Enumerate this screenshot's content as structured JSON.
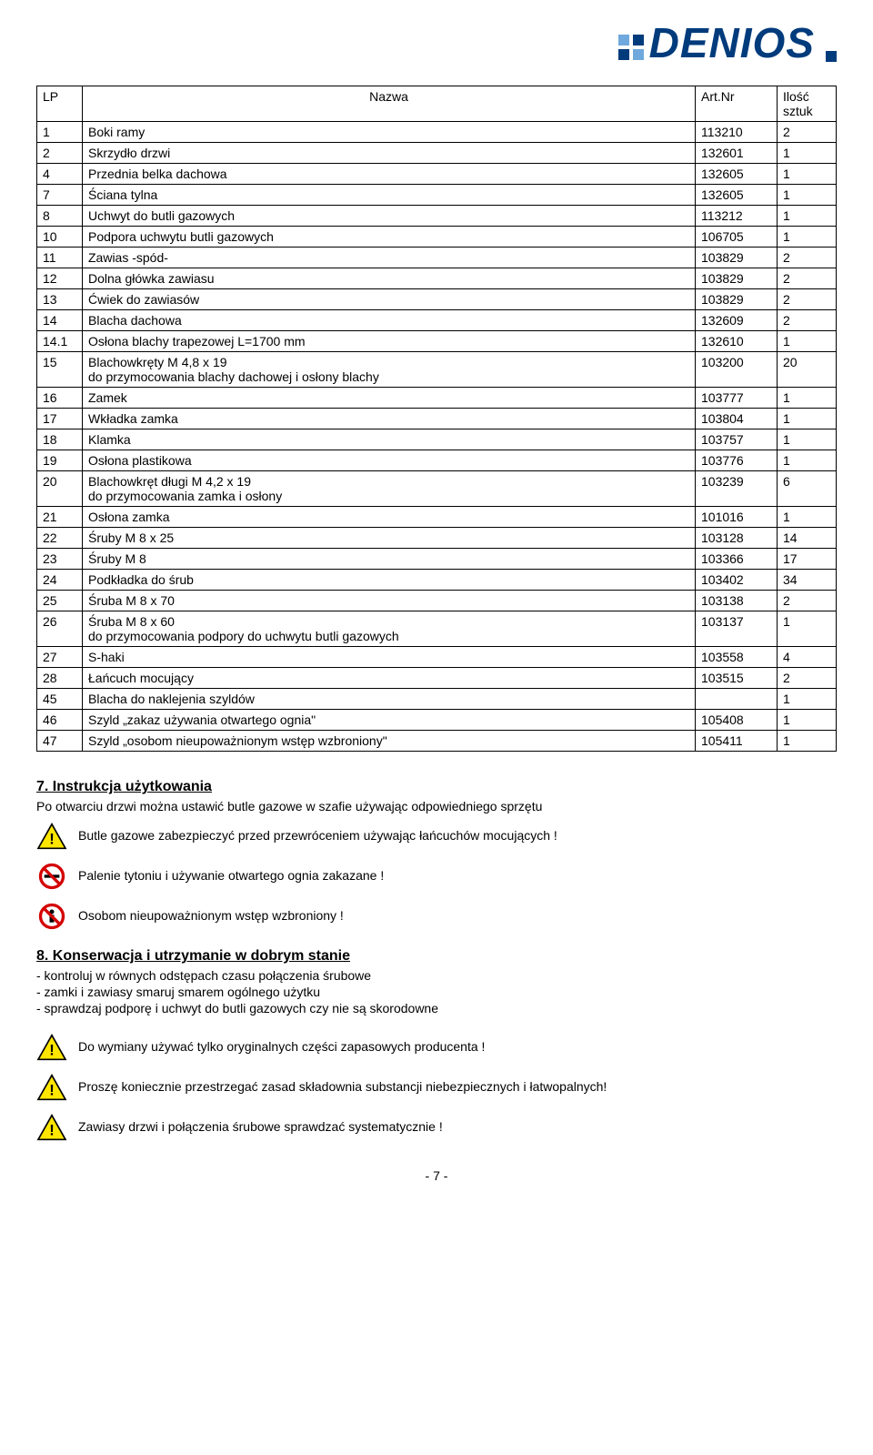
{
  "logo": {
    "text": "DENIOS",
    "color": "#003b7c",
    "sq_colors": [
      "#6fa8dc",
      "#003b7c",
      "#003b7c",
      "#6fa8dc"
    ]
  },
  "table": {
    "headers": {
      "lp": "LP",
      "nazwa": "Nazwa",
      "art": "Art.Nr",
      "ilosc": "Ilość sztuk"
    },
    "rows": [
      {
        "lp": "1",
        "nazwa": "Boki ramy",
        "art": "113210",
        "ilosc": "2"
      },
      {
        "lp": "2",
        "nazwa": "Skrzydło drzwi",
        "art": "132601",
        "ilosc": "1"
      },
      {
        "lp": "4",
        "nazwa": "Przednia belka dachowa",
        "art": "132605",
        "ilosc": "1"
      },
      {
        "lp": "7",
        "nazwa": "Ściana tylna",
        "art": "132605",
        "ilosc": "1"
      },
      {
        "lp": "8",
        "nazwa": "Uchwyt do butli gazowych",
        "art": "113212",
        "ilosc": "1"
      },
      {
        "lp": "10",
        "nazwa": "Podpora uchwytu butli gazowych",
        "art": "106705",
        "ilosc": "1"
      },
      {
        "lp": "11",
        "nazwa": "Zawias -spód-",
        "art": "103829",
        "ilosc": "2"
      },
      {
        "lp": "12",
        "nazwa": "Dolna główka zawiasu",
        "art": "103829",
        "ilosc": "2"
      },
      {
        "lp": "13",
        "nazwa": "Ćwiek do zawiasów",
        "art": "103829",
        "ilosc": "2"
      },
      {
        "lp": "14",
        "nazwa": "Blacha dachowa",
        "art": "132609",
        "ilosc": "2"
      },
      {
        "lp": "14.1",
        "nazwa": "Osłona blachy trapezowej L=1700 mm",
        "art": "132610",
        "ilosc": "1"
      },
      {
        "lp": "15",
        "nazwa": "Blachowkręty M 4,8 x 19\ndo przymocowania blachy dachowej i osłony blachy",
        "art": "103200",
        "ilosc": "20"
      },
      {
        "lp": "16",
        "nazwa": "Zamek",
        "art": "103777",
        "ilosc": "1"
      },
      {
        "lp": "17",
        "nazwa": "Wkładka zamka",
        "art": "103804",
        "ilosc": "1"
      },
      {
        "lp": "18",
        "nazwa": "Klamka",
        "art": "103757",
        "ilosc": "1"
      },
      {
        "lp": "19",
        "nazwa": "Osłona plastikowa",
        "art": "103776",
        "ilosc": "1"
      },
      {
        "lp": "20",
        "nazwa": "Blachowkręt długi M 4,2 x 19\ndo przymocowania zamka i osłony",
        "art": "103239",
        "ilosc": "6"
      },
      {
        "lp": "21",
        "nazwa": "Osłona zamka",
        "art": "101016",
        "ilosc": "1"
      },
      {
        "lp": "22",
        "nazwa": "Śruby M 8 x 25",
        "art": "103128",
        "ilosc": "14"
      },
      {
        "lp": "23",
        "nazwa": "Śruby M 8",
        "art": "103366",
        "ilosc": "17"
      },
      {
        "lp": "24",
        "nazwa": "Podkładka do śrub",
        "art": "103402",
        "ilosc": "34"
      },
      {
        "lp": "25",
        "nazwa": "Śruba M 8 x 70",
        "art": "103138",
        "ilosc": "2"
      },
      {
        "lp": "26",
        "nazwa": "Śruba M 8 x 60\ndo przymocowania podpory do uchwytu butli gazowych",
        "art": "103137",
        "ilosc": "1"
      },
      {
        "lp": "27",
        "nazwa": "S-haki",
        "art": "103558",
        "ilosc": "4"
      },
      {
        "lp": "28",
        "nazwa": "Łańcuch mocujący",
        "art": "103515",
        "ilosc": "2"
      },
      {
        "lp": "45",
        "nazwa": "Blacha do naklejenia szyldów",
        "art": "",
        "ilosc": "1"
      },
      {
        "lp": "46",
        "nazwa": "Szyld „zakaz używania otwartego ognia\"",
        "art": "105408",
        "ilosc": "1"
      },
      {
        "lp": "47",
        "nazwa": "Szyld „osobom nieupoważnionym wstęp wzbroniony\"",
        "art": "105411",
        "ilosc": "1"
      }
    ]
  },
  "section7": {
    "title": "7. Instrukcja użytkowania",
    "intro": "Po otwarciu drzwi można ustawić butle gazowe w szafie używając odpowiedniego sprzętu",
    "warn1": "Butle gazowe zabezpieczyć przed przewróceniem używając łańcuchów mocujących !",
    "warn2": "Palenie tytoniu i używanie otwartego ognia zakazane !",
    "warn3": "Osobom nieupoważnionym wstęp wzbroniony !"
  },
  "section8": {
    "title": "8. Konserwacja i utrzymanie w dobrym stanie",
    "bullets": [
      "- kontroluj w równych odstępach czasu połączenia śrubowe",
      "- zamki i zawiasy smaruj smarem ogólnego użytku",
      "- sprawdzaj podporę i uchwyt do butli gazowych czy nie są skorodowne"
    ],
    "warn1": "Do wymiany używać tylko oryginalnych części zapasowych producenta !",
    "warn2": "Proszę koniecznie przestrzegać zasad składownia substancji niebezpiecznych i łatwopalnych!",
    "warn3": "Zawiasy drzwi i połączenia śrubowe sprawdzać systematycznie !"
  },
  "footer": {
    "page": "- 7 -"
  },
  "colors": {
    "warning_fill": "#ffe600",
    "warning_stroke": "#000000",
    "prohibit_red": "#d40000",
    "prohibit_white": "#ffffff"
  }
}
